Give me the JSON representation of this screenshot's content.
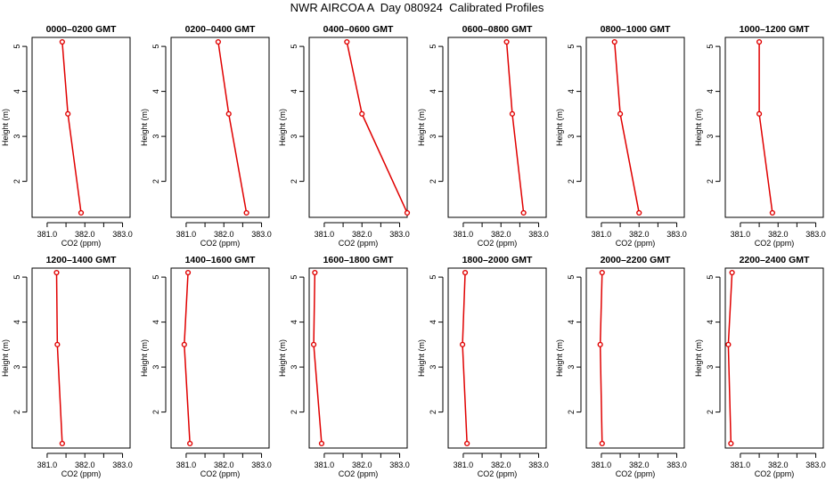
{
  "figure": {
    "title": "NWR AIRCOA A  Day 080924  Calibrated Profiles",
    "line_color": "#e00000"
  },
  "chart_data": [
    {
      "type": "line",
      "title": "0000–0200 GMT",
      "xlabel": "CO2 (ppm)",
      "ylabel": "Height (m)",
      "xlim": [
        380.6,
        383.2
      ],
      "ylim": [
        1.2,
        5.2
      ],
      "xticks": [
        "381.0",
        "382.0",
        "383.0"
      ],
      "yticks": [
        "2",
        "3",
        "4",
        "5"
      ],
      "grid": false,
      "series": [
        {
          "x": [
            381.4,
            381.55,
            381.9
          ],
          "y": [
            5.1,
            3.5,
            1.3
          ]
        }
      ]
    },
    {
      "type": "line",
      "title": "0200–0400 GMT",
      "xlabel": "CO2 (ppm)",
      "ylabel": "Height (m)",
      "xlim": [
        380.6,
        383.2
      ],
      "ylim": [
        1.2,
        5.2
      ],
      "xticks": [
        "381.0",
        "382.0",
        "383.0"
      ],
      "yticks": [
        "2",
        "3",
        "4",
        "5"
      ],
      "grid": false,
      "series": [
        {
          "x": [
            381.85,
            382.13,
            382.6
          ],
          "y": [
            5.1,
            3.5,
            1.3
          ]
        }
      ]
    },
    {
      "type": "line",
      "title": "0400–0600 GMT",
      "xlabel": "CO2 (ppm)",
      "ylabel": "Height (m)",
      "xlim": [
        380.6,
        383.2
      ],
      "ylim": [
        1.2,
        5.2
      ],
      "xticks": [
        "381.0",
        "382.0",
        "383.0"
      ],
      "yticks": [
        "2",
        "3",
        "4",
        "5"
      ],
      "grid": false,
      "series": [
        {
          "x": [
            381.6,
            382.0,
            383.2
          ],
          "y": [
            5.1,
            3.5,
            1.3
          ]
        }
      ]
    },
    {
      "type": "line",
      "title": "0600–0800 GMT",
      "xlabel": "CO2 (ppm)",
      "ylabel": "Height (m)",
      "xlim": [
        380.6,
        383.2
      ],
      "ylim": [
        1.2,
        5.2
      ],
      "xticks": [
        "381.0",
        "382.0",
        "383.0"
      ],
      "yticks": [
        "2",
        "3",
        "4",
        "5"
      ],
      "grid": false,
      "series": [
        {
          "x": [
            382.15,
            382.3,
            382.6
          ],
          "y": [
            5.1,
            3.5,
            1.3
          ]
        }
      ]
    },
    {
      "type": "line",
      "title": "0800–1000 GMT",
      "xlabel": "CO2 (ppm)",
      "ylabel": "Height (m)",
      "xlim": [
        380.6,
        383.2
      ],
      "ylim": [
        1.2,
        5.2
      ],
      "xticks": [
        "381.0",
        "382.0",
        "383.0"
      ],
      "yticks": [
        "2",
        "3",
        "4",
        "5"
      ],
      "grid": false,
      "series": [
        {
          "x": [
            381.35,
            381.5,
            382.0
          ],
          "y": [
            5.1,
            3.5,
            1.3
          ]
        }
      ]
    },
    {
      "type": "line",
      "title": "1000–1200 GMT",
      "xlabel": "CO2 (ppm)",
      "ylabel": "Height (m)",
      "xlim": [
        380.6,
        383.2
      ],
      "ylim": [
        1.2,
        5.2
      ],
      "xticks": [
        "381.0",
        "382.0",
        "383.0"
      ],
      "yticks": [
        "2",
        "3",
        "4",
        "5"
      ],
      "grid": false,
      "series": [
        {
          "x": [
            381.5,
            381.5,
            381.85
          ],
          "y": [
            5.1,
            3.5,
            1.3
          ]
        }
      ]
    },
    {
      "type": "line",
      "title": "1200–1400 GMT",
      "xlabel": "CO2 (ppm)",
      "ylabel": "Height (m)",
      "xlim": [
        380.6,
        383.2
      ],
      "ylim": [
        1.2,
        5.2
      ],
      "xticks": [
        "381.0",
        "382.0",
        "383.0"
      ],
      "yticks": [
        "2",
        "3",
        "4",
        "5"
      ],
      "grid": false,
      "series": [
        {
          "x": [
            381.25,
            381.27,
            381.4
          ],
          "y": [
            5.1,
            3.5,
            1.3
          ]
        }
      ]
    },
    {
      "type": "line",
      "title": "1400–1600 GMT",
      "xlabel": "CO2 (ppm)",
      "ylabel": "Height (m)",
      "xlim": [
        380.6,
        383.2
      ],
      "ylim": [
        1.2,
        5.2
      ],
      "xticks": [
        "381.0",
        "382.0",
        "383.0"
      ],
      "yticks": [
        "2",
        "3",
        "4",
        "5"
      ],
      "grid": false,
      "series": [
        {
          "x": [
            381.05,
            380.95,
            381.1
          ],
          "y": [
            5.1,
            3.5,
            1.3
          ]
        }
      ]
    },
    {
      "type": "line",
      "title": "1600–1800 GMT",
      "xlabel": "CO2 (ppm)",
      "ylabel": "Height (m)",
      "xlim": [
        380.6,
        383.2
      ],
      "ylim": [
        1.2,
        5.2
      ],
      "xticks": [
        "381.0",
        "382.0",
        "383.0"
      ],
      "yticks": [
        "2",
        "3",
        "4",
        "5"
      ],
      "grid": false,
      "series": [
        {
          "x": [
            380.75,
            380.72,
            380.93
          ],
          "y": [
            5.1,
            3.5,
            1.3
          ]
        }
      ]
    },
    {
      "type": "line",
      "title": "1800–2000 GMT",
      "xlabel": "CO2 (ppm)",
      "ylabel": "Height (m)",
      "xlim": [
        380.6,
        383.2
      ],
      "ylim": [
        1.2,
        5.2
      ],
      "xticks": [
        "381.0",
        "382.0",
        "383.0"
      ],
      "yticks": [
        "2",
        "3",
        "4",
        "5"
      ],
      "grid": false,
      "series": [
        {
          "x": [
            381.05,
            380.98,
            381.1
          ],
          "y": [
            5.1,
            3.5,
            1.3
          ]
        }
      ]
    },
    {
      "type": "line",
      "title": "2000–2200 GMT",
      "xlabel": "CO2 (ppm)",
      "ylabel": "Height (m)",
      "xlim": [
        380.6,
        383.2
      ],
      "ylim": [
        1.2,
        5.2
      ],
      "xticks": [
        "381.0",
        "382.0",
        "383.0"
      ],
      "yticks": [
        "2",
        "3",
        "4",
        "5"
      ],
      "grid": false,
      "series": [
        {
          "x": [
            381.02,
            380.97,
            381.02
          ],
          "y": [
            5.1,
            3.5,
            1.3
          ]
        }
      ]
    },
    {
      "type": "line",
      "title": "2200–2400 GMT",
      "xlabel": "CO2 (ppm)",
      "ylabel": "Height (m)",
      "xlim": [
        380.6,
        383.2
      ],
      "ylim": [
        1.2,
        5.2
      ],
      "xticks": [
        "381.0",
        "382.0",
        "383.0"
      ],
      "yticks": [
        "2",
        "3",
        "4",
        "5"
      ],
      "grid": false,
      "series": [
        {
          "x": [
            380.78,
            380.68,
            380.75
          ],
          "y": [
            5.1,
            3.5,
            1.3
          ]
        }
      ]
    }
  ]
}
